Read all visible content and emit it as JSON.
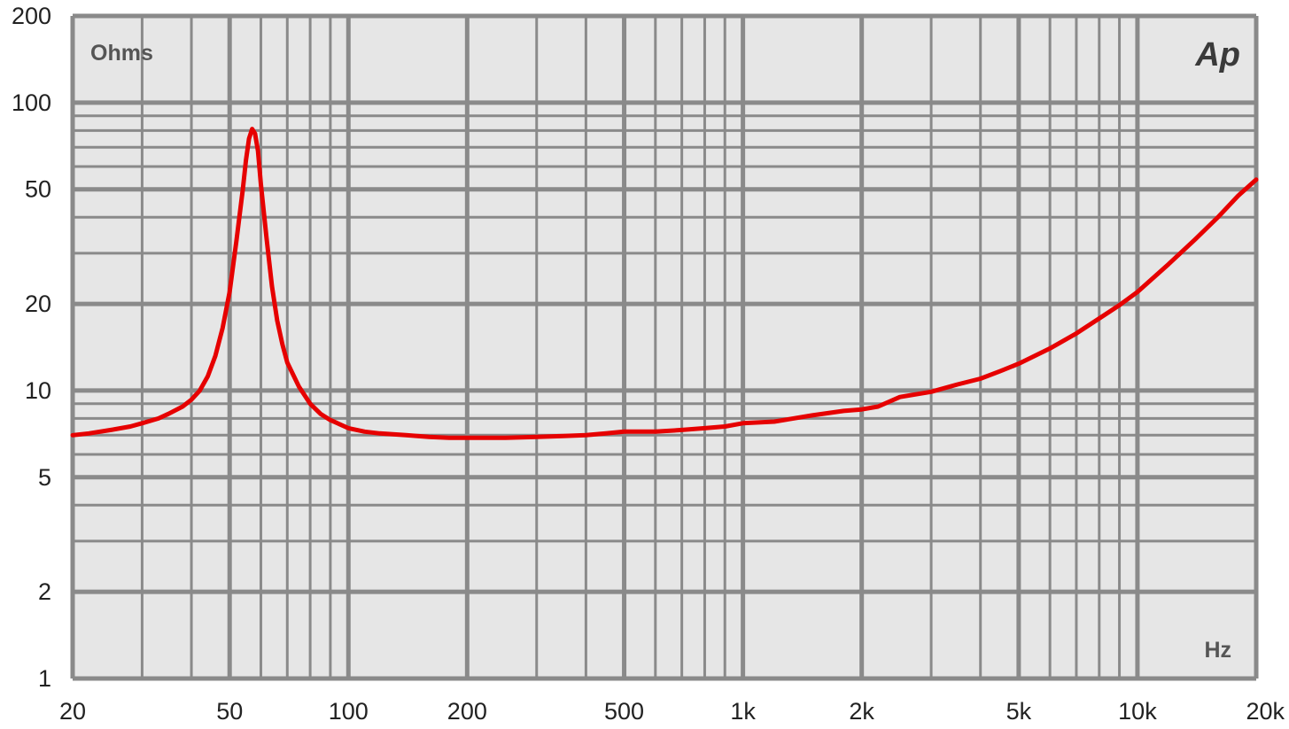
{
  "chart_data": {
    "type": "line",
    "title": "",
    "xlabel": "Hz",
    "ylabel": "Ohms",
    "x_scale": "log",
    "y_scale": "log",
    "xlim": [
      20,
      20000
    ],
    "ylim": [
      1,
      200
    ],
    "grid": true,
    "x_ticks": [
      {
        "value": 20,
        "label": "20"
      },
      {
        "value": 50,
        "label": "50"
      },
      {
        "value": 100,
        "label": "100"
      },
      {
        "value": 200,
        "label": "200"
      },
      {
        "value": 500,
        "label": "500"
      },
      {
        "value": 1000,
        "label": "1k"
      },
      {
        "value": 2000,
        "label": "2k"
      },
      {
        "value": 5000,
        "label": "5k"
      },
      {
        "value": 10000,
        "label": "10k"
      },
      {
        "value": 20000,
        "label": "20k"
      }
    ],
    "y_ticks": [
      {
        "value": 1,
        "label": "1"
      },
      {
        "value": 2,
        "label": "2"
      },
      {
        "value": 5,
        "label": "5"
      },
      {
        "value": 10,
        "label": "10"
      },
      {
        "value": 20,
        "label": "20"
      },
      {
        "value": 50,
        "label": "50"
      },
      {
        "value": 100,
        "label": "100"
      },
      {
        "value": 200,
        "label": "200"
      }
    ],
    "logo": "Ap",
    "colors": {
      "curve": "#e60000",
      "plot_background": "#e6e6e6",
      "grid": "#8a8a8a"
    },
    "series": [
      {
        "x": [
          20,
          22,
          25,
          28,
          30,
          33,
          35,
          38,
          40,
          42,
          44,
          46,
          48,
          50,
          52,
          54,
          55,
          56,
          57,
          58,
          59,
          60,
          62,
          64,
          66,
          68,
          70,
          75,
          80,
          85,
          90,
          100,
          110,
          120,
          140,
          160,
          180,
          200,
          250,
          300,
          350,
          400,
          450,
          500,
          600,
          700,
          800,
          900,
          1000,
          1200,
          1500,
          1800,
          2000,
          2200,
          2500,
          3000,
          3500,
          4000,
          4500,
          5000,
          6000,
          7000,
          8000,
          9000,
          10000,
          12000,
          14000,
          16000,
          18000,
          20000
        ],
        "values": [
          7.0,
          7.1,
          7.3,
          7.5,
          7.7,
          8.0,
          8.3,
          8.8,
          9.3,
          10.0,
          11.2,
          13.2,
          16.5,
          22,
          33,
          50,
          63,
          75,
          81,
          78,
          68,
          52,
          34,
          23,
          17.5,
          14.5,
          12.5,
          10.3,
          9.0,
          8.3,
          7.9,
          7.4,
          7.2,
          7.1,
          7.0,
          6.9,
          6.85,
          6.85,
          6.85,
          6.9,
          6.95,
          7.0,
          7.1,
          7.2,
          7.2,
          7.3,
          7.4,
          7.5,
          7.7,
          7.8,
          8.2,
          8.5,
          8.6,
          8.8,
          9.5,
          9.9,
          10.5,
          11.0,
          11.7,
          12.4,
          14.0,
          15.8,
          17.8,
          19.8,
          22.0,
          27.5,
          33.5,
          40.0,
          47.5,
          54.0
        ]
      }
    ]
  }
}
